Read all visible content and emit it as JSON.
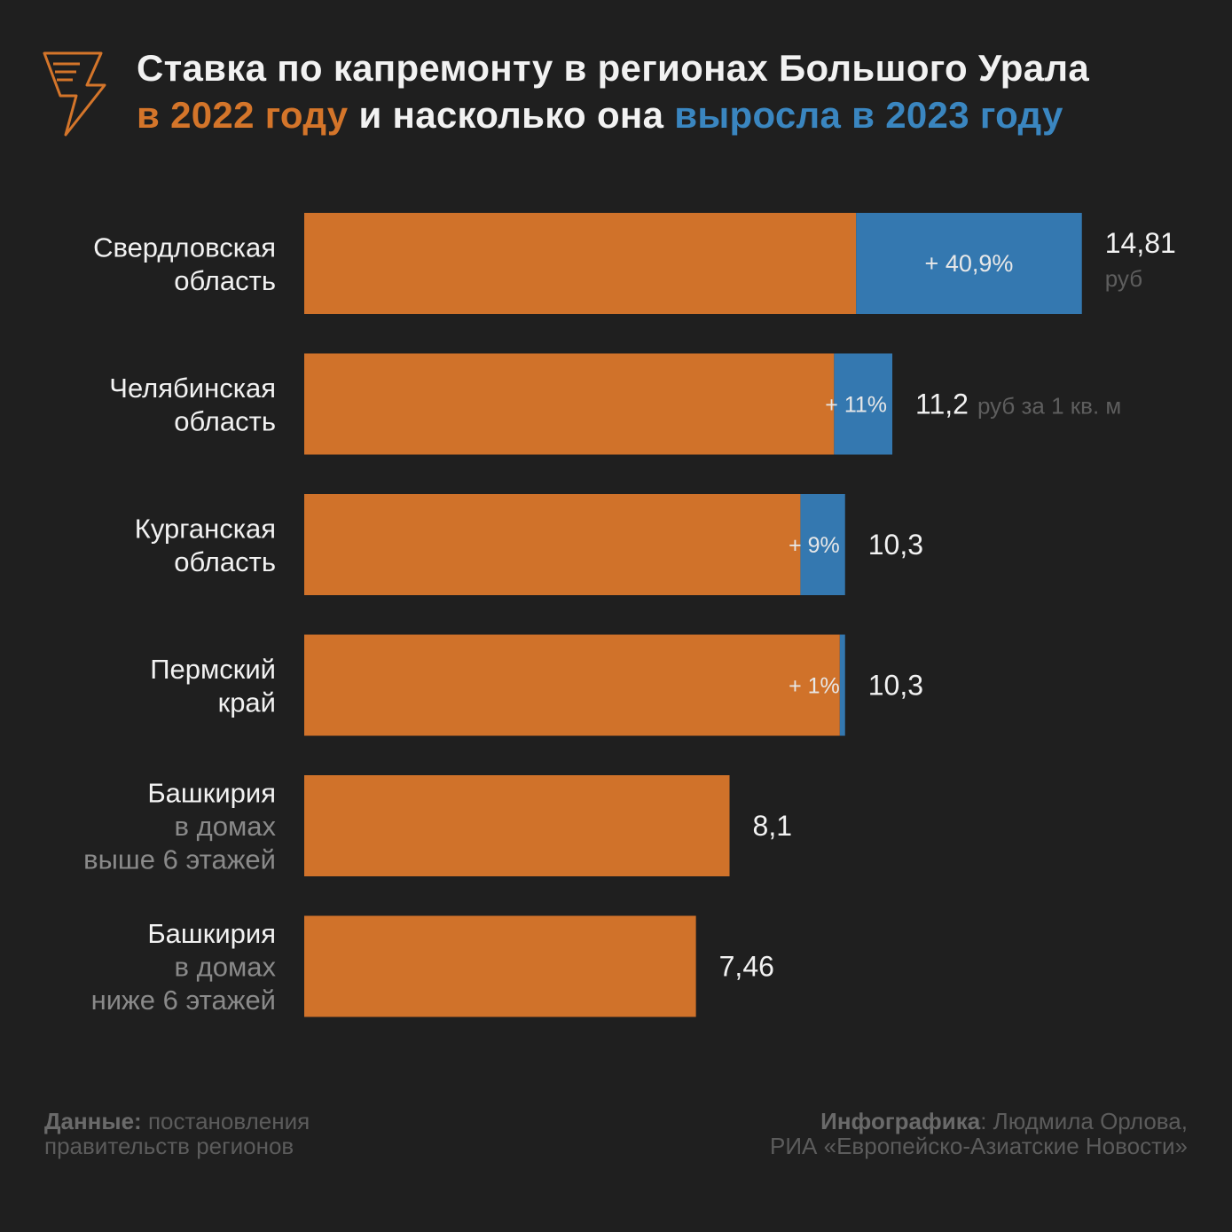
{
  "title": {
    "line1": "Ставка по капремонту в регионах Большого Урала",
    "line2_orange": "в 2022 году",
    "line2_mid": " и насколько она ",
    "line2_blue": "выросла в 2023 году"
  },
  "colors": {
    "background": "#1f1f1f",
    "bar_2022": "#d0722a",
    "bar_growth": "#3478b0",
    "text_primary": "#f2f2f2",
    "text_secondary": "#8a8a8a"
  },
  "icon": "lightning-document-icon",
  "chart_data": {
    "type": "bar",
    "orientation": "horizontal",
    "stacked": true,
    "xlim": [
      0,
      15
    ],
    "grid": false,
    "categories": [
      {
        "name": [
          "Свердловская",
          "область"
        ],
        "sub": []
      },
      {
        "name": [
          "Челябинская",
          "область"
        ],
        "sub": []
      },
      {
        "name": [
          "Курганская",
          "область"
        ],
        "sub": []
      },
      {
        "name": [
          "Пермский",
          "край"
        ],
        "sub": []
      },
      {
        "name": [
          "Башкирия"
        ],
        "sub": [
          "в домах",
          "выше 6 этажей"
        ]
      },
      {
        "name": [
          "Башкирия"
        ],
        "sub": [
          "в домах",
          "ниже 6 этажей"
        ]
      }
    ],
    "series": [
      {
        "values": [
          10.51,
          10.09,
          9.45,
          10.2,
          8.1,
          7.46
        ],
        "color": "#d0722a"
      },
      {
        "values": [
          4.3,
          1.11,
          0.85,
          0.1,
          0,
          0
        ],
        "color": "#3478b0"
      }
    ],
    "totals": [
      14.81,
      11.2,
      10.3,
      10.3,
      8.1,
      7.46
    ],
    "total_labels": [
      "14,81",
      "11,2",
      "10,3",
      "10,3",
      "8,1",
      "7,46"
    ],
    "unit_labels": [
      "руб",
      "руб за 1 кв. м",
      "",
      "",
      "",
      ""
    ],
    "growth_labels": [
      "+ 40,9%",
      "+ 11%",
      "+ 9%",
      "+ 1%",
      "",
      ""
    ]
  },
  "footer": {
    "source_bold": "Данные:",
    "source_text": " постановления правительств регионов",
    "credit_bold": "Инфографика",
    "credit_text": ": Людмила Орлова,",
    "credit_line2": "РИА «Европейско-Азиатские Новости»"
  }
}
